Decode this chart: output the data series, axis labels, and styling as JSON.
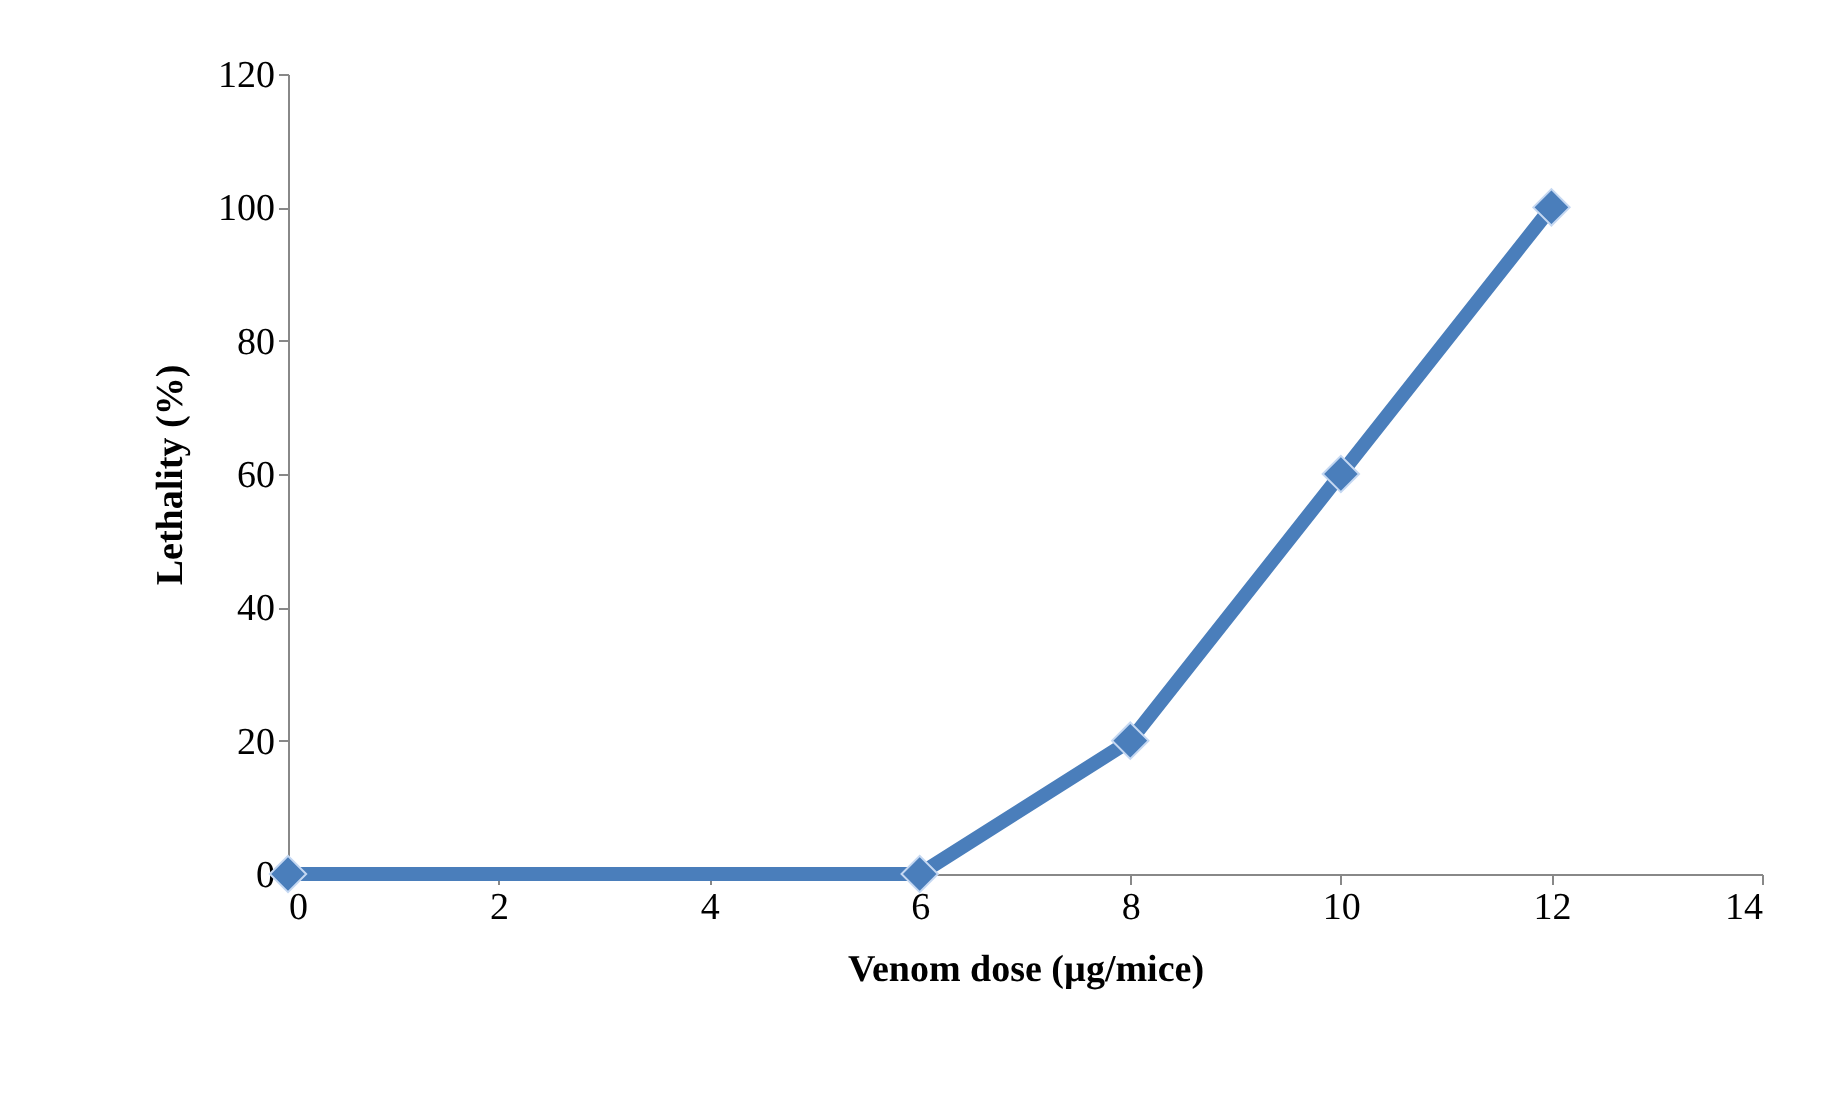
{
  "chart_data": {
    "type": "line",
    "xlabel": "Venom dose (µg/mice)",
    "ylabel": "Lethality (%)",
    "x": [
      0,
      6,
      8,
      10,
      12
    ],
    "series": [
      {
        "color": "#4a7ebb",
        "values": [
          0,
          0,
          20,
          60,
          100
        ]
      }
    ],
    "xlim": [
      0,
      14
    ],
    "xticks": [
      0,
      2,
      4,
      6,
      8,
      10,
      12,
      14
    ],
    "ylim": [
      0,
      120
    ],
    "yticks": [
      0,
      20,
      40,
      60,
      80,
      100,
      120
    ],
    "grid": false,
    "marker": "diamond",
    "line_style": "solid"
  }
}
